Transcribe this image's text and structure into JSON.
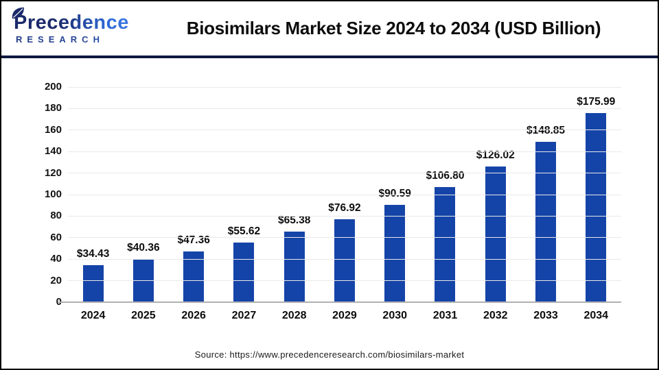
{
  "header": {
    "logo": {
      "word_main": "Precedence",
      "word_sub": "RESEARCH"
    },
    "title": "Biosimilars Market Size 2024 to 2034 (USD Billion)"
  },
  "chart_data": {
    "type": "bar",
    "title": "Biosimilars Market Size 2024 to 2034 (USD Billion)",
    "categories": [
      "2024",
      "2025",
      "2026",
      "2027",
      "2028",
      "2029",
      "2030",
      "2031",
      "2032",
      "2033",
      "2034"
    ],
    "values": [
      34.43,
      40.36,
      47.36,
      55.62,
      65.38,
      76.92,
      90.59,
      106.8,
      126.02,
      148.85,
      175.99
    ],
    "value_labels": [
      "$34.43",
      "$40.36",
      "$47.36",
      "$55.62",
      "$65.38",
      "$76.92",
      "$90.59",
      "$106.80",
      "$126.02",
      "$148.85",
      "$175.99"
    ],
    "unit": "USD Billion",
    "xlabel": "",
    "ylabel": "",
    "ylim": [
      0,
      200
    ],
    "yticks": [
      0,
      20,
      40,
      60,
      80,
      100,
      120,
      140,
      160,
      180,
      200
    ],
    "grid": true,
    "legend": false,
    "bar_color": "#1544a8",
    "gridline_color": "#e9e9e9",
    "axis_line_color": "#b0b0b0"
  },
  "footer": {
    "source": "Source: https://www.precedenceresearch.com/biosimilars-market"
  }
}
